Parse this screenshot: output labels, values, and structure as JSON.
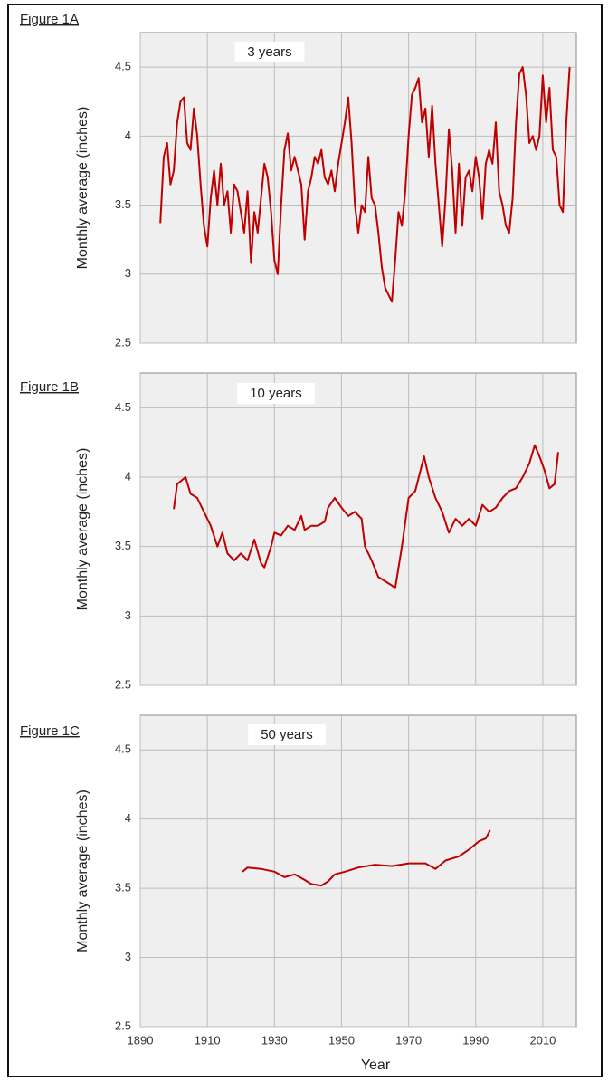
{
  "chart_data": [
    {
      "type": "line",
      "title": "Figure 1A",
      "annotation": "3 years",
      "y_label": "Monthly average (inches)",
      "x": [
        1896,
        1897,
        1898,
        1899,
        1900,
        1901,
        1902,
        1903,
        1904,
        1905,
        1906,
        1907,
        1908,
        1909,
        1910,
        1911,
        1912,
        1913,
        1914,
        1915,
        1916,
        1917,
        1918,
        1919,
        1920,
        1921,
        1922,
        1923,
        1924,
        1925,
        1926,
        1927,
        1928,
        1929,
        1930,
        1931,
        1932,
        1933,
        1934,
        1935,
        1936,
        1937,
        1938,
        1939,
        1940,
        1941,
        1942,
        1943,
        1944,
        1945,
        1946,
        1947,
        1948,
        1949,
        1950,
        1951,
        1952,
        1953,
        1954,
        1955,
        1956,
        1957,
        1958,
        1959,
        1960,
        1961,
        1962,
        1963,
        1964,
        1965,
        1966,
        1967,
        1968,
        1969,
        1970,
        1971,
        1972,
        1973,
        1974,
        1975,
        1976,
        1977,
        1978,
        1979,
        1980,
        1981,
        1982,
        1983,
        1984,
        1985,
        1986,
        1987,
        1988,
        1989,
        1990,
        1991,
        1992,
        1993,
        1994,
        1995,
        1996,
        1997,
        1998,
        1999,
        2000,
        2001,
        2002,
        2003,
        2004,
        2005,
        2006,
        2007,
        2008,
        2009,
        2010,
        2011,
        2012,
        2013,
        2014,
        2015,
        2016,
        2017,
        2018
      ],
      "values": [
        3.37,
        3.85,
        3.95,
        3.65,
        3.75,
        4.1,
        4.25,
        4.28,
        3.95,
        3.9,
        4.2,
        4.0,
        3.65,
        3.35,
        3.2,
        3.55,
        3.75,
        3.5,
        3.8,
        3.5,
        3.6,
        3.3,
        3.65,
        3.6,
        3.45,
        3.3,
        3.6,
        3.08,
        3.45,
        3.3,
        3.55,
        3.8,
        3.7,
        3.45,
        3.1,
        3.0,
        3.5,
        3.9,
        4.02,
        3.75,
        3.85,
        3.75,
        3.65,
        3.25,
        3.6,
        3.7,
        3.85,
        3.8,
        3.9,
        3.7,
        3.65,
        3.75,
        3.6,
        3.8,
        3.95,
        4.1,
        4.28,
        3.95,
        3.5,
        3.3,
        3.5,
        3.45,
        3.85,
        3.55,
        3.5,
        3.3,
        3.05,
        2.9,
        2.85,
        2.8,
        3.1,
        3.45,
        3.35,
        3.6,
        4.0,
        4.3,
        4.35,
        4.42,
        4.1,
        4.2,
        3.85,
        4.22,
        3.8,
        3.5,
        3.2,
        3.55,
        4.05,
        3.75,
        3.3,
        3.8,
        3.35,
        3.7,
        3.75,
        3.6,
        3.85,
        3.7,
        3.4,
        3.8,
        3.9,
        3.8,
        4.1,
        3.6,
        3.5,
        3.35,
        3.3,
        3.55,
        4.1,
        4.45,
        4.5,
        4.3,
        3.95,
        4.0,
        3.9,
        4.0,
        4.44,
        4.1,
        4.35,
        3.9,
        3.85,
        3.5,
        3.45,
        4.1,
        4.5
      ],
      "color": "#c00000",
      "xlim": [
        1890,
        2020
      ],
      "ylim": [
        2.5,
        4.75
      ],
      "xticks": [
        1890,
        1910,
        1930,
        1950,
        1970,
        1990,
        2010
      ],
      "yticks": [
        2.5,
        3,
        3.5,
        4,
        4.5
      ],
      "grid": true,
      "show_xtick_labels": false
    },
    {
      "type": "line",
      "title": "Figure 1B",
      "annotation": "10 years",
      "y_label": "Monthly average (inches)",
      "x": [
        1900,
        1901,
        1903.5,
        1905,
        1907,
        1909,
        1911,
        1913,
        1914.5,
        1916,
        1918,
        1920,
        1922,
        1924,
        1926,
        1927,
        1929,
        1930,
        1932,
        1934,
        1936,
        1938,
        1939,
        1941,
        1943,
        1945,
        1946,
        1948,
        1950,
        1952,
        1954,
        1956,
        1957,
        1959,
        1961,
        1963,
        1965,
        1966,
        1968,
        1970,
        1972,
        1974.6,
        1976,
        1978,
        1980,
        1982,
        1984,
        1986,
        1988,
        1990,
        1992,
        1994,
        1996,
        1998,
        2000,
        2002,
        2004,
        2006,
        2007.6,
        2009,
        2010.5,
        2012,
        2013.5,
        2014.6
      ],
      "values": [
        3.77,
        3.95,
        4.0,
        3.88,
        3.85,
        3.75,
        3.65,
        3.5,
        3.6,
        3.45,
        3.4,
        3.45,
        3.4,
        3.55,
        3.38,
        3.35,
        3.5,
        3.6,
        3.58,
        3.65,
        3.62,
        3.72,
        3.62,
        3.65,
        3.65,
        3.68,
        3.78,
        3.85,
        3.78,
        3.72,
        3.75,
        3.7,
        3.5,
        3.4,
        3.28,
        3.25,
        3.22,
        3.2,
        3.5,
        3.85,
        3.9,
        4.15,
        4.0,
        3.85,
        3.75,
        3.6,
        3.7,
        3.65,
        3.7,
        3.65,
        3.8,
        3.75,
        3.78,
        3.85,
        3.9,
        3.92,
        4.0,
        4.1,
        4.23,
        4.15,
        4.05,
        3.92,
        3.95,
        4.18
      ],
      "color": "#c00000",
      "xlim": [
        1890,
        2020
      ],
      "ylim": [
        2.5,
        4.75
      ],
      "xticks": [
        1890,
        1910,
        1930,
        1950,
        1970,
        1990,
        2010
      ],
      "yticks": [
        2.5,
        3,
        3.5,
        4,
        4.5
      ],
      "grid": true,
      "show_xtick_labels": false
    },
    {
      "type": "line",
      "title": "Figure 1C",
      "annotation": "50 years",
      "y_label": "Monthly average (inches)",
      "x_label": "Year",
      "x": [
        1920.5,
        1922,
        1926,
        1930,
        1933,
        1936,
        1939,
        1941,
        1944,
        1946,
        1948,
        1951,
        1955,
        1960,
        1965,
        1970,
        1975,
        1978,
        1981,
        1985,
        1988,
        1991,
        1993,
        1994.3
      ],
      "values": [
        3.62,
        3.65,
        3.64,
        3.62,
        3.58,
        3.6,
        3.56,
        3.53,
        3.52,
        3.55,
        3.6,
        3.62,
        3.65,
        3.67,
        3.66,
        3.68,
        3.68,
        3.64,
        3.7,
        3.73,
        3.78,
        3.84,
        3.86,
        3.92
      ],
      "color": "#c00000",
      "xlim": [
        1890,
        2020
      ],
      "ylim": [
        2.5,
        4.75
      ],
      "xticks": [
        1890,
        1910,
        1930,
        1950,
        1970,
        1990,
        2010
      ],
      "yticks": [
        2.5,
        3,
        3.5,
        4,
        4.5
      ],
      "grid": true,
      "show_xtick_labels": true
    }
  ]
}
